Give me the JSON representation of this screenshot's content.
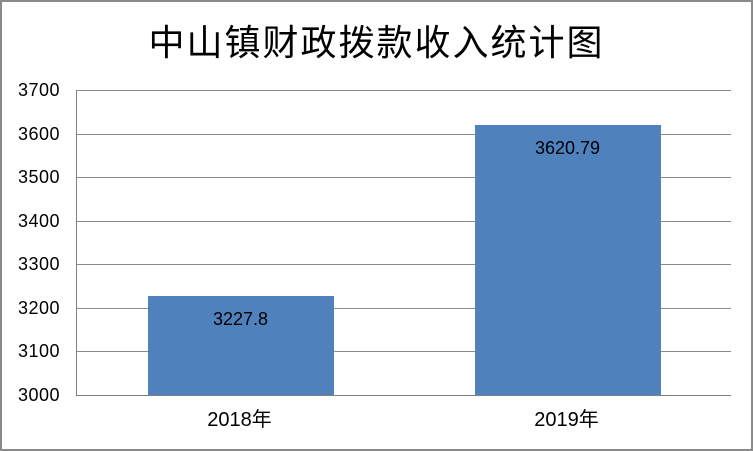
{
  "window": {
    "background": "#ffffff",
    "frame_border_color": "#8a8a8a"
  },
  "chart_data": {
    "type": "bar",
    "title": "中山镇财政拨款收入统计图",
    "categories": [
      "2018年",
      "2019年"
    ],
    "values": [
      3227.8,
      3620.79
    ],
    "value_labels": [
      "3227.8",
      "3620.79"
    ],
    "xlabel": "",
    "ylabel": "",
    "ylim": [
      3000,
      3700
    ],
    "yticks": [
      3000,
      3100,
      3200,
      3300,
      3400,
      3500,
      3600,
      3700
    ],
    "ytick_labels": [
      "3000",
      "3100",
      "3200",
      "3300",
      "3400",
      "3500",
      "3600",
      "3700"
    ],
    "grid": "horizontal-only",
    "legend": "none",
    "bar_color": "#4F81BD",
    "gridline_color": "#8c8c8c",
    "axis_line_color": "#808080",
    "label_color": "#000000"
  }
}
